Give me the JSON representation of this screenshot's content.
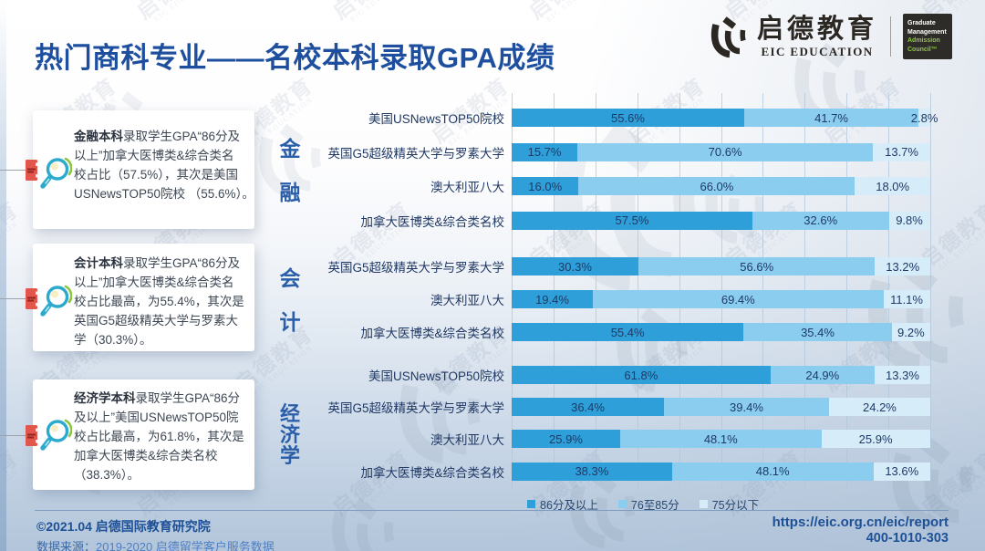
{
  "title": "热门商科专业——名校本科录取GPA成绩",
  "brand": {
    "name_cn": "启德教育",
    "name_en": "EIC EDUCATION",
    "gmac_lines": [
      "Graduate",
      "Management",
      "Admission",
      "Council™"
    ]
  },
  "insight_cards": [
    {
      "lead": "金融本科",
      "text": "录取学生GPA“86分及\n以上”加拿大医博类&综合类名\n校占比（57.5%），其次是美国\nUSNewsTOP50院校 （55.6%）。"
    },
    {
      "lead": "会计本科",
      "text": "录取学生GPA“86分及\n以上”加拿大医博类&综合类名\n校占比最高，为55.4%，其次是\n英国G5超级精英大学与罗素大\n学（30.3%）。"
    },
    {
      "lead": "经济学本科",
      "text": "录取学生GPA“86分\n及以上”美国USNewsTOP50院\n校占比最高，为61.8%，其次是\n加拿大医博类&综合类名校\n（38.3%）。"
    }
  ],
  "chart_data": {
    "type": "bar",
    "orientation": "horizontal-stacked",
    "unit": "%",
    "xlim": [
      0,
      100
    ],
    "grid": true,
    "series": [
      "86分及以上",
      "76至85分",
      "75分以下"
    ],
    "series_colors": [
      "#2e9fd8",
      "#8bcdef",
      "#d7ecf9"
    ],
    "groups": [
      {
        "category": "金融",
        "rows": [
          {
            "label": "美国USNewsTOP50院校",
            "values": [
              55.6,
              41.7,
              2.8
            ]
          },
          {
            "label": "英国G5超级精英大学与罗素大学",
            "values": [
              15.7,
              70.6,
              13.7
            ]
          },
          {
            "label": "澳大利亚八大",
            "values": [
              16.0,
              66.0,
              18.0
            ]
          },
          {
            "label": "加拿大医博类&综合类名校",
            "values": [
              57.5,
              32.6,
              9.8
            ]
          }
        ]
      },
      {
        "category": "会计",
        "rows": [
          {
            "label": "英国G5超级精英大学与罗素大学",
            "values": [
              30.3,
              56.6,
              13.2
            ]
          },
          {
            "label": "澳大利亚八大",
            "values": [
              19.4,
              69.4,
              11.1
            ]
          },
          {
            "label": "加拿大医博类&综合类名校",
            "values": [
              55.4,
              35.4,
              9.2
            ]
          }
        ]
      },
      {
        "category": "经济学",
        "rows": [
          {
            "label": "美国USNewsTOP50院校",
            "values": [
              61.8,
              24.9,
              13.3
            ]
          },
          {
            "label": "英国G5超级精英大学与罗素大学",
            "values": [
              36.4,
              39.4,
              24.2
            ]
          },
          {
            "label": "澳大利亚八大",
            "values": [
              25.9,
              48.1,
              25.9
            ]
          },
          {
            "label": "加拿大医博类&综合类名校",
            "values": [
              38.3,
              48.1,
              13.6
            ]
          }
        ]
      }
    ],
    "legend": {
      "position": "bottom",
      "entries": [
        "86分及以上",
        "76至85分",
        "75分以下"
      ]
    }
  },
  "footer": {
    "copyright": "©2021.04 启德国际教育研究院",
    "source_label": "数据来源：",
    "source_value": "2019-2020 启德留学客户服务数据",
    "url": "https://eic.org.cn/eic/report",
    "phone": "400-1010-303"
  },
  "watermark": {
    "text_cn": "启德教育",
    "text_en": "EIC EDUCATION"
  }
}
